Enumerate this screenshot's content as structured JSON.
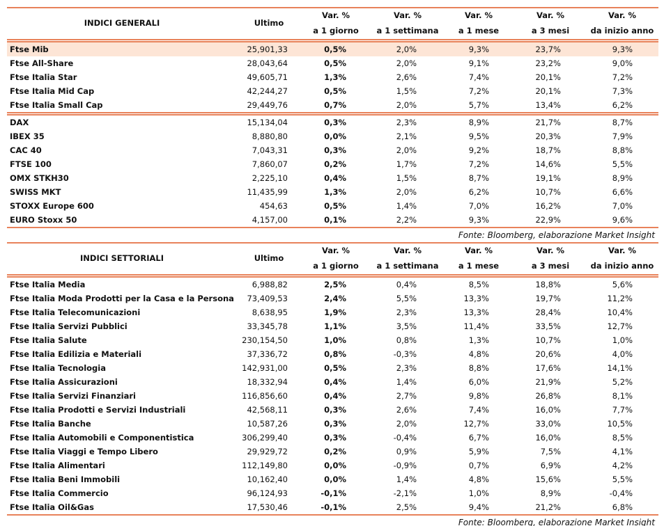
{
  "tables": [
    {
      "header": {
        "title": "INDICI GENERALI",
        "columns": [
          [
            "Ultimo"
          ],
          [
            "Var. %",
            "a 1 giorno"
          ],
          [
            "Var. %",
            "a 1 settimana"
          ],
          [
            "Var. %",
            "a 1 mese"
          ],
          [
            "Var. %",
            "a 3 mesi"
          ],
          [
            "Var. %",
            "da inizio anno"
          ]
        ]
      },
      "groups": [
        [
          [
            "Ftse Mib",
            "25,901,33",
            "0,5%",
            "2,0%",
            "9,3%",
            "23,7%",
            "9,3%"
          ],
          [
            "Ftse All-Share",
            "28,043,64",
            "0,5%",
            "2,0%",
            "9,1%",
            "23,2%",
            "9,0%"
          ],
          [
            "Ftse Italia Star",
            "49,605,71",
            "1,3%",
            "2,6%",
            "7,4%",
            "20,1%",
            "7,2%"
          ],
          [
            "Ftse Italia Mid Cap",
            "42,244,27",
            "0,5%",
            "1,5%",
            "7,2%",
            "20,1%",
            "7,3%"
          ],
          [
            "Ftse Italia Small Cap",
            "29,449,76",
            "0,7%",
            "2,0%",
            "5,7%",
            "13,4%",
            "6,2%"
          ]
        ],
        [
          [
            "DAX",
            "15,134,04",
            "0,3%",
            "2,3%",
            "8,9%",
            "21,7%",
            "8,7%"
          ],
          [
            "IBEX 35",
            "8,880,80",
            "0,0%",
            "2,1%",
            "9,5%",
            "20,3%",
            "7,9%"
          ],
          [
            "CAC 40",
            "7,043,31",
            "0,3%",
            "2,0%",
            "9,2%",
            "18,7%",
            "8,8%"
          ],
          [
            "FTSE 100",
            "7,860,07",
            "0,2%",
            "1,7%",
            "7,2%",
            "14,6%",
            "5,5%"
          ],
          [
            "OMX STKH30",
            "2,225,10",
            "0,4%",
            "1,5%",
            "8,7%",
            "19,1%",
            "8,9%"
          ],
          [
            "SWISS MKT",
            "11,435,99",
            "1,3%",
            "2,0%",
            "6,2%",
            "10,7%",
            "6,6%"
          ],
          [
            "STOXX Europe 600",
            "454,63",
            "0,5%",
            "1,4%",
            "7,0%",
            "16,2%",
            "7,0%"
          ],
          [
            "EURO Stoxx 50",
            "4,157,00",
            "0,1%",
            "2,2%",
            "9,3%",
            "22,9%",
            "9,6%"
          ]
        ]
      ],
      "source": "Fonte: Bloomberg, elaborazione Market Insight"
    },
    {
      "header": {
        "title": "INDICI SETTORIALI",
        "columns": [
          [
            "Ultimo"
          ],
          [
            "Var. %",
            "a 1 giorno"
          ],
          [
            "Var. %",
            "a 1 settimana"
          ],
          [
            "Var. %",
            "a 1 mese"
          ],
          [
            "Var. %",
            "a 3 mesi"
          ],
          [
            "Var. %",
            "da inizio anno"
          ]
        ]
      },
      "groups": [
        [
          [
            "Ftse Italia Media",
            "6,988,82",
            "2,5%",
            "0,4%",
            "8,5%",
            "18,8%",
            "5,6%"
          ],
          [
            "Ftse Italia Moda Prodotti per la Casa e la Persona",
            "73,409,53",
            "2,4%",
            "5,5%",
            "13,3%",
            "19,7%",
            "11,2%"
          ],
          [
            "Ftse Italia Telecomunicazioni",
            "8,638,95",
            "1,9%",
            "2,3%",
            "13,3%",
            "28,4%",
            "10,4%"
          ],
          [
            "Ftse Italia Servizi Pubblici",
            "33,345,78",
            "1,1%",
            "3,5%",
            "11,4%",
            "33,5%",
            "12,7%"
          ],
          [
            "Ftse Italia Salute",
            "230,154,50",
            "1,0%",
            "0,8%",
            "1,3%",
            "10,7%",
            "1,0%"
          ],
          [
            "Ftse Italia Edilizia e Materiali",
            "37,336,72",
            "0,8%",
            "-0,3%",
            "4,8%",
            "20,6%",
            "4,0%"
          ],
          [
            "Ftse Italia Tecnologia",
            "142,931,00",
            "0,5%",
            "2,3%",
            "8,8%",
            "17,6%",
            "14,1%"
          ],
          [
            "Ftse Italia Assicurazioni",
            "18,332,94",
            "0,4%",
            "1,4%",
            "6,0%",
            "21,9%",
            "5,2%"
          ],
          [
            "Ftse Italia Servizi Finanziari",
            "116,856,60",
            "0,4%",
            "2,7%",
            "9,8%",
            "26,8%",
            "8,1%"
          ],
          [
            "Ftse Italia Prodotti e Servizi Industriali",
            "42,568,11",
            "0,3%",
            "2,6%",
            "7,4%",
            "16,0%",
            "7,7%"
          ],
          [
            "Ftse Italia Banche",
            "10,587,26",
            "0,3%",
            "2,0%",
            "12,7%",
            "33,0%",
            "10,5%"
          ],
          [
            "Ftse Italia Automobili e Componentistica",
            "306,299,40",
            "0,3%",
            "-0,4%",
            "6,7%",
            "16,0%",
            "8,5%"
          ],
          [
            "Ftse Italia Viaggi e Tempo Libero",
            "29,929,72",
            "0,2%",
            "0,9%",
            "5,9%",
            "7,5%",
            "4,1%"
          ],
          [
            "Ftse Italia Alimentari",
            "112,149,80",
            "0,0%",
            "-0,9%",
            "0,7%",
            "6,9%",
            "4,2%"
          ],
          [
            "Ftse Italia Beni Immobili",
            "10,162,40",
            "0,0%",
            "1,4%",
            "4,8%",
            "15,6%",
            "5,5%"
          ],
          [
            "Ftse Italia Commercio",
            "96,124,93",
            "-0,1%",
            "-2,1%",
            "1,0%",
            "8,9%",
            "-0,4%"
          ],
          [
            "Ftse Italia Oil&Gas",
            "17,530,46",
            "-0,1%",
            "2,5%",
            "9,4%",
            "21,2%",
            "6,8%"
          ]
        ]
      ],
      "source": "Fonte: Bloomberg, elaborazione Market Insight"
    }
  ]
}
